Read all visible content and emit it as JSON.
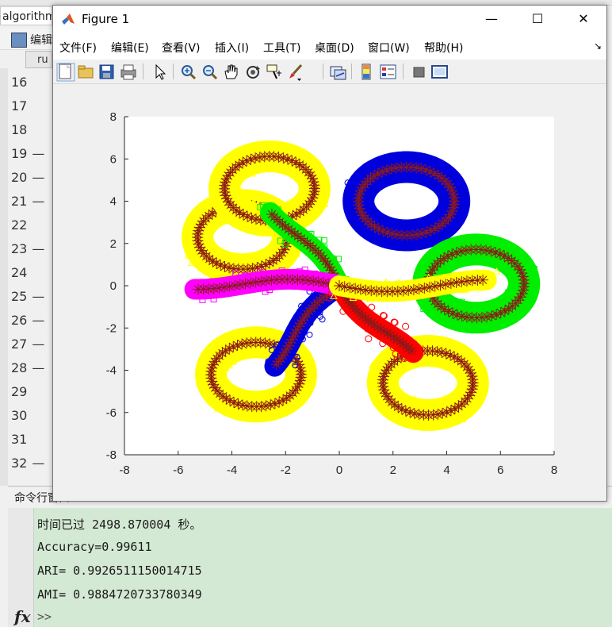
{
  "background": {
    "top_tab_label": "algorithm",
    "editor_label": "编辑",
    "run_tab_label": "ru",
    "line_numbers": [
      {
        "n": "16",
        "dash": ""
      },
      {
        "n": "17",
        "dash": ""
      },
      {
        "n": "18",
        "dash": ""
      },
      {
        "n": "19",
        "dash": "—"
      },
      {
        "n": "20",
        "dash": "—"
      },
      {
        "n": "21",
        "dash": "—"
      },
      {
        "n": "22",
        "dash": ""
      },
      {
        "n": "23",
        "dash": "—"
      },
      {
        "n": "24",
        "dash": ""
      },
      {
        "n": "25",
        "dash": "—"
      },
      {
        "n": "26",
        "dash": "—"
      },
      {
        "n": "27",
        "dash": "—"
      },
      {
        "n": "28",
        "dash": "—"
      },
      {
        "n": "29",
        "dash": ""
      },
      {
        "n": "30",
        "dash": ""
      },
      {
        "n": "31",
        "dash": ""
      },
      {
        "n": "32",
        "dash": "—"
      }
    ]
  },
  "command_window": {
    "header": "命令行窗口",
    "lines": [
      "时间已过 2498.870004 秒。",
      "Accuracy=0.99611",
      "ARI= 0.9926511150014715",
      "AMI= 0.9884720733780349"
    ],
    "prompt": ">>",
    "fx_label": "fx"
  },
  "figure": {
    "title": "Figure 1",
    "minimize": "—",
    "maximize": "☐",
    "close": "✕",
    "menus": [
      "文件(F)",
      "编辑(E)",
      "查看(V)",
      "插入(I)",
      "工具(T)",
      "桌面(D)",
      "窗口(W)",
      "帮助(H)"
    ],
    "menu_pin": "↘",
    "toolbar_icons": [
      "new-file-icon",
      "open-folder-icon",
      "save-icon",
      "print-icon",
      "pointer-icon",
      "zoom-in-icon",
      "zoom-out-icon",
      "pan-hand-icon",
      "rotate-3d-icon",
      "data-cursor-icon",
      "brush-icon",
      "link-plot-icon",
      "colorbar-icon",
      "legend-icon",
      "hide-plot-tools-icon",
      "show-plot-tools-icon"
    ]
  },
  "chart_data": {
    "type": "scatter",
    "title": "",
    "xlabel": "",
    "ylabel": "",
    "xlim": [
      -8,
      8
    ],
    "ylim": [
      -8,
      8
    ],
    "xticks": [
      -8,
      -6,
      -4,
      -2,
      0,
      2,
      4,
      6,
      8
    ],
    "yticks": [
      -8,
      -6,
      -4,
      -2,
      0,
      2,
      4,
      6,
      8
    ],
    "grid": false,
    "series": [
      {
        "color": "#ffff00",
        "marker": "triangle",
        "curve": "petal",
        "center": [
          -3.6,
          2.3
        ]
      },
      {
        "color": "#ffff00",
        "marker": "triangle",
        "curve": "petal",
        "center": [
          -2.6,
          4.6
        ]
      },
      {
        "color": "#ffff00",
        "marker": "triangle",
        "curve": "petal",
        "center": [
          -3.1,
          -4.2
        ]
      },
      {
        "color": "#ffff00",
        "marker": "triangle",
        "curve": "petal",
        "center": [
          3.3,
          -4.6
        ]
      },
      {
        "color": "#0000dd",
        "marker": "star",
        "curve": "loop",
        "center": [
          2.5,
          4.0
        ]
      },
      {
        "color": "#0000dd",
        "marker": "star",
        "curve": "arm",
        "from": [
          0,
          0
        ],
        "to": [
          -2.6,
          -3.7
        ]
      },
      {
        "color": "#00ee00",
        "marker": "square",
        "curve": "loop",
        "center": [
          5.1,
          0.1
        ]
      },
      {
        "color": "#00ee00",
        "marker": "square",
        "curve": "arm",
        "from": [
          0,
          0
        ],
        "to": [
          -2.4,
          3.6
        ]
      },
      {
        "color": "#ff00ff",
        "marker": "square",
        "curve": "arm",
        "from": [
          0,
          0
        ],
        "to": [
          -5.4,
          0.1
        ]
      },
      {
        "color": "#ff0000",
        "marker": "circle",
        "curve": "arm",
        "from": [
          0,
          0
        ],
        "to": [
          2.6,
          -3.3
        ]
      },
      {
        "color": "#ffff00",
        "marker": "triangle",
        "curve": "arm",
        "from": [
          0,
          0
        ],
        "to": [
          5.5,
          0.0
        ]
      }
    ],
    "centroid_marker": {
      "symbol": "asterisk",
      "color": "#8b1a1a"
    }
  }
}
